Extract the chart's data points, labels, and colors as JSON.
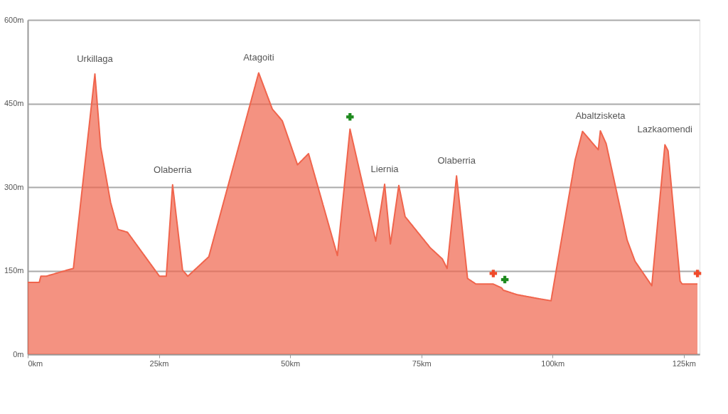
{
  "chart_data": {
    "type": "area",
    "xlim": [
      0,
      128
    ],
    "ylim": [
      0,
      600
    ],
    "xticks": [
      {
        "value": 0,
        "label": "0km"
      },
      {
        "value": 25,
        "label": "25km"
      },
      {
        "value": 50,
        "label": "50km"
      },
      {
        "value": 75,
        "label": "75km"
      },
      {
        "value": 100,
        "label": "100km"
      },
      {
        "value": 125,
        "label": "125km"
      }
    ],
    "yticks": [
      {
        "value": 0,
        "label": "0m"
      },
      {
        "value": 150,
        "label": "150m"
      },
      {
        "value": 300,
        "label": "300m"
      },
      {
        "value": 450,
        "label": "450m"
      },
      {
        "value": 600,
        "label": "600m"
      }
    ],
    "grid": "y",
    "series": [
      {
        "color": "#f0644c",
        "x": [
          0,
          2.2,
          2.5,
          3.5,
          7.5,
          8.7,
          12.8,
          13.9,
          15.8,
          17.2,
          19.0,
          25.1,
          26.4,
          27.6,
          29.5,
          30.5,
          34.5,
          44.0,
          46.6,
          48.5,
          51.4,
          53.5,
          59.0,
          61.4,
          66.3,
          68.0,
          69.1,
          70.7,
          71.9,
          76.7,
          79.0,
          79.9,
          81.7,
          83.8,
          85.4,
          88.7,
          90.3,
          90.6,
          93.2,
          97.2,
          99.7,
          104.3,
          105.7,
          108.7,
          109.1,
          110.2,
          114.2,
          115.7,
          118.9,
          121.4,
          122.0,
          124.3,
          124.7,
          127.6
        ],
        "values": [
          129,
          129,
          140,
          140,
          151,
          154,
          503,
          372,
          272,
          224,
          219,
          140,
          140,
          304,
          151,
          140,
          175,
          505,
          440,
          419,
          340,
          360,
          177,
          404,
          203,
          305,
          198,
          303,
          247,
          191,
          171,
          154,
          320,
          136,
          126,
          126,
          119,
          115,
          107,
          100,
          96,
          349,
          400,
          367,
          401,
          378,
          205,
          167,
          123,
          376,
          365,
          131,
          126,
          126
        ]
      },
      {
        "type": "scatter",
        "marker": "cross",
        "color": "#1e8a1e",
        "x": [
          61.4,
          90.9
        ],
        "values": [
          426,
          134
        ]
      },
      {
        "type": "scatter",
        "marker": "cross",
        "color": "#f04a2a",
        "x": [
          88.7,
          127.6
        ],
        "values": [
          145,
          145
        ]
      }
    ],
    "annotations": [
      {
        "text": "Urkillaga",
        "x": 12.8,
        "y": 503
      },
      {
        "text": "Olaberria",
        "x": 27.6,
        "y": 304
      },
      {
        "text": "Atagoiti",
        "x": 44.0,
        "y": 505
      },
      {
        "text": "Liernia",
        "x": 68.0,
        "y": 305
      },
      {
        "text": "Olaberria",
        "x": 81.7,
        "y": 320
      },
      {
        "text": "Abaltzisketa",
        "x": 109.1,
        "y": 401
      },
      {
        "text": "Lazkaomendi",
        "x": 121.4,
        "y": 376
      }
    ]
  }
}
